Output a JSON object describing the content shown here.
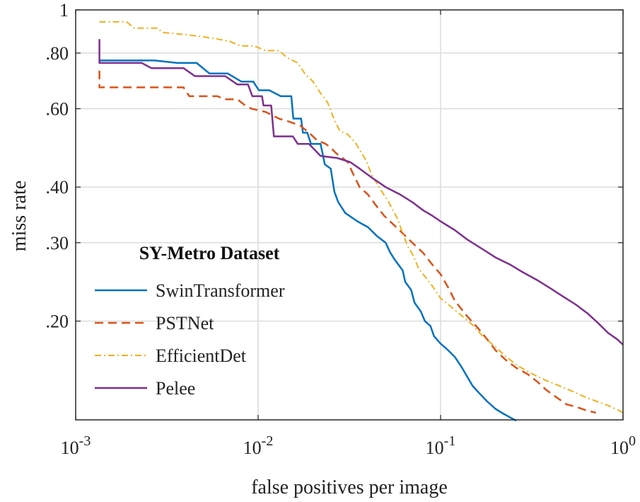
{
  "chart_data": {
    "type": "line",
    "title": "",
    "xlabel": "false positives per image",
    "ylabel": "miss rate",
    "xscale": "log",
    "yscale": "log",
    "xlim": [
      0.001,
      1
    ],
    "ylim": [
      0.12,
      1
    ],
    "grid": true,
    "x_ticks": [
      {
        "value": 0.001,
        "base": "10",
        "exp": "-3"
      },
      {
        "value": 0.01,
        "base": "10",
        "exp": "-2"
      },
      {
        "value": 0.1,
        "base": "10",
        "exp": "-1"
      },
      {
        "value": 1,
        "base": "10",
        "exp": "0"
      }
    ],
    "y_ticks": [
      {
        "value": 0.2,
        "label": ".20"
      },
      {
        "value": 0.3,
        "label": ".30"
      },
      {
        "value": 0.4,
        "label": ".40"
      },
      {
        "value": 0.6,
        "label": ".60"
      },
      {
        "value": 0.8,
        "label": ".80"
      },
      {
        "value": 1.0,
        "label": "1"
      }
    ],
    "legend": {
      "title": "SY-Metro Dataset",
      "position": "bottom-left"
    },
    "series": [
      {
        "name": "SwinTransformer",
        "color": "#0072BD",
        "dash": "solid",
        "points": [
          [
            0.00135,
            0.77
          ],
          [
            0.0027,
            0.77
          ],
          [
            0.0036,
            0.76
          ],
          [
            0.0046,
            0.76
          ],
          [
            0.0054,
            0.72
          ],
          [
            0.0068,
            0.72
          ],
          [
            0.0081,
            0.69
          ],
          [
            0.0094,
            0.69
          ],
          [
            0.0101,
            0.66
          ],
          [
            0.0115,
            0.66
          ],
          [
            0.0133,
            0.64
          ],
          [
            0.0152,
            0.64
          ],
          [
            0.0156,
            0.57
          ],
          [
            0.0172,
            0.57
          ],
          [
            0.0176,
            0.53
          ],
          [
            0.0186,
            0.53
          ],
          [
            0.0195,
            0.5
          ],
          [
            0.022,
            0.5
          ],
          [
            0.0232,
            0.45
          ],
          [
            0.025,
            0.44
          ],
          [
            0.0262,
            0.39
          ],
          [
            0.0275,
            0.37
          ],
          [
            0.03,
            0.35
          ],
          [
            0.035,
            0.335
          ],
          [
            0.04,
            0.325
          ],
          [
            0.045,
            0.31
          ],
          [
            0.05,
            0.3
          ],
          [
            0.053,
            0.285
          ],
          [
            0.056,
            0.275
          ],
          [
            0.062,
            0.26
          ],
          [
            0.064,
            0.245
          ],
          [
            0.069,
            0.235
          ],
          [
            0.072,
            0.22
          ],
          [
            0.078,
            0.21
          ],
          [
            0.082,
            0.2
          ],
          [
            0.088,
            0.195
          ],
          [
            0.092,
            0.185
          ],
          [
            0.1,
            0.178
          ],
          [
            0.11,
            0.172
          ],
          [
            0.12,
            0.166
          ],
          [
            0.13,
            0.158
          ],
          [
            0.14,
            0.15
          ],
          [
            0.15,
            0.143
          ],
          [
            0.165,
            0.137
          ],
          [
            0.18,
            0.132
          ],
          [
            0.2,
            0.127
          ],
          [
            0.22,
            0.124
          ],
          [
            0.245,
            0.121
          ],
          [
            0.26,
            0.1195
          ]
        ]
      },
      {
        "name": "PSTNet",
        "color": "#D95319",
        "dash": "dashed",
        "points": [
          [
            0.00135,
            0.73
          ],
          [
            0.00135,
            0.67
          ],
          [
            0.0039,
            0.67
          ],
          [
            0.0042,
            0.64
          ],
          [
            0.006,
            0.64
          ],
          [
            0.0065,
            0.63
          ],
          [
            0.0077,
            0.63
          ],
          [
            0.0085,
            0.61
          ],
          [
            0.0092,
            0.6
          ],
          [
            0.011,
            0.59
          ],
          [
            0.013,
            0.57
          ],
          [
            0.015,
            0.56
          ],
          [
            0.017,
            0.55
          ],
          [
            0.019,
            0.53
          ],
          [
            0.021,
            0.51
          ],
          [
            0.0235,
            0.5
          ],
          [
            0.025,
            0.49
          ],
          [
            0.027,
            0.475
          ],
          [
            0.029,
            0.465
          ],
          [
            0.031,
            0.455
          ],
          [
            0.033,
            0.43
          ],
          [
            0.036,
            0.4
          ],
          [
            0.04,
            0.385
          ],
          [
            0.044,
            0.365
          ],
          [
            0.049,
            0.345
          ],
          [
            0.055,
            0.33
          ],
          [
            0.062,
            0.315
          ],
          [
            0.07,
            0.3
          ],
          [
            0.08,
            0.285
          ],
          [
            0.09,
            0.268
          ],
          [
            0.1,
            0.255
          ],
          [
            0.11,
            0.238
          ],
          [
            0.12,
            0.222
          ],
          [
            0.14,
            0.205
          ],
          [
            0.16,
            0.193
          ],
          [
            0.18,
            0.182
          ],
          [
            0.2,
            0.172
          ],
          [
            0.23,
            0.163
          ],
          [
            0.26,
            0.157
          ],
          [
            0.3,
            0.152
          ],
          [
            0.34,
            0.146
          ],
          [
            0.38,
            0.14
          ],
          [
            0.43,
            0.135
          ],
          [
            0.49,
            0.13
          ],
          [
            0.55,
            0.1285
          ],
          [
            0.63,
            0.126
          ],
          [
            0.71,
            0.1245
          ]
        ]
      },
      {
        "name": "EfficientDet",
        "color": "#EDB120",
        "dash": "dashdot",
        "points": [
          [
            0.00135,
            0.94
          ],
          [
            0.0019,
            0.94
          ],
          [
            0.0021,
            0.91
          ],
          [
            0.0028,
            0.91
          ],
          [
            0.003,
            0.89
          ],
          [
            0.004,
            0.88
          ],
          [
            0.005,
            0.87
          ],
          [
            0.006,
            0.86
          ],
          [
            0.007,
            0.85
          ],
          [
            0.008,
            0.83
          ],
          [
            0.0095,
            0.83
          ],
          [
            0.011,
            0.81
          ],
          [
            0.013,
            0.81
          ],
          [
            0.0145,
            0.78
          ],
          [
            0.0165,
            0.76
          ],
          [
            0.018,
            0.72
          ],
          [
            0.02,
            0.69
          ],
          [
            0.022,
            0.65
          ],
          [
            0.024,
            0.62
          ],
          [
            0.026,
            0.57
          ],
          [
            0.028,
            0.535
          ],
          [
            0.031,
            0.525
          ],
          [
            0.034,
            0.505
          ],
          [
            0.036,
            0.485
          ],
          [
            0.039,
            0.46
          ],
          [
            0.042,
            0.425
          ],
          [
            0.046,
            0.4
          ],
          [
            0.052,
            0.37
          ],
          [
            0.058,
            0.34
          ],
          [
            0.062,
            0.315
          ],
          [
            0.066,
            0.295
          ],
          [
            0.071,
            0.28
          ],
          [
            0.076,
            0.262
          ],
          [
            0.082,
            0.252
          ],
          [
            0.09,
            0.24
          ],
          [
            0.1,
            0.225
          ],
          [
            0.11,
            0.218
          ],
          [
            0.13,
            0.206
          ],
          [
            0.15,
            0.196
          ],
          [
            0.17,
            0.185
          ],
          [
            0.2,
            0.175
          ],
          [
            0.23,
            0.166
          ],
          [
            0.27,
            0.158
          ],
          [
            0.32,
            0.152
          ],
          [
            0.38,
            0.147
          ],
          [
            0.45,
            0.143
          ],
          [
            0.53,
            0.139
          ],
          [
            0.62,
            0.135
          ],
          [
            0.72,
            0.132
          ],
          [
            0.84,
            0.129
          ],
          [
            0.95,
            0.126
          ],
          [
            1.0,
            0.1245
          ]
        ]
      },
      {
        "name": "Pelee",
        "color": "#7E2F8E",
        "dash": "solid",
        "points": [
          [
            0.00135,
            0.86
          ],
          [
            0.00135,
            0.76
          ],
          [
            0.0023,
            0.76
          ],
          [
            0.0026,
            0.74
          ],
          [
            0.0039,
            0.74
          ],
          [
            0.0045,
            0.71
          ],
          [
            0.0066,
            0.71
          ],
          [
            0.0077,
            0.68
          ],
          [
            0.0088,
            0.68
          ],
          [
            0.0093,
            0.64
          ],
          [
            0.0105,
            0.64
          ],
          [
            0.0107,
            0.61
          ],
          [
            0.0118,
            0.61
          ],
          [
            0.0122,
            0.52
          ],
          [
            0.0155,
            0.52
          ],
          [
            0.0165,
            0.5
          ],
          [
            0.019,
            0.5
          ],
          [
            0.022,
            0.47
          ],
          [
            0.027,
            0.465
          ],
          [
            0.032,
            0.455
          ],
          [
            0.036,
            0.44
          ],
          [
            0.042,
            0.42
          ],
          [
            0.05,
            0.4
          ],
          [
            0.06,
            0.385
          ],
          [
            0.07,
            0.37
          ],
          [
            0.08,
            0.355
          ],
          [
            0.09,
            0.345
          ],
          [
            0.1,
            0.335
          ],
          [
            0.12,
            0.32
          ],
          [
            0.14,
            0.305
          ],
          [
            0.17,
            0.29
          ],
          [
            0.2,
            0.278
          ],
          [
            0.24,
            0.268
          ],
          [
            0.28,
            0.258
          ],
          [
            0.34,
            0.247
          ],
          [
            0.4,
            0.237
          ],
          [
            0.47,
            0.227
          ],
          [
            0.55,
            0.218
          ],
          [
            0.64,
            0.208
          ],
          [
            0.73,
            0.198
          ],
          [
            0.83,
            0.188
          ],
          [
            0.93,
            0.182
          ],
          [
            1.0,
            0.177
          ]
        ]
      }
    ]
  }
}
